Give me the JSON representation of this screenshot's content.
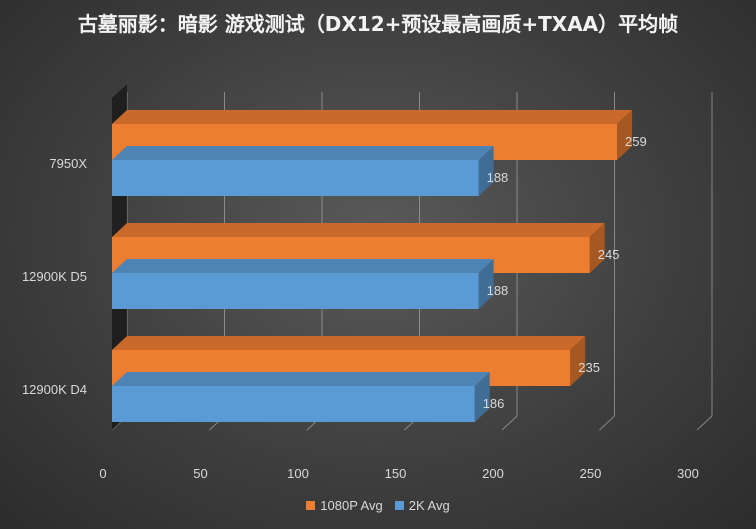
{
  "chart_data": {
    "type": "bar",
    "orientation": "horizontal",
    "style": "3d-clustered",
    "title": "古墓丽影：暗影 游戏测试（DX12+预设最高画质+TXAA）平均帧",
    "categories": [
      "7950X",
      "12900K D5",
      "12900K D4"
    ],
    "series": [
      {
        "name": "1080P Avg",
        "color": "#ed7d31",
        "values": [
          259,
          245,
          235
        ]
      },
      {
        "name": "2K Avg",
        "color": "#5b9bd5",
        "values": [
          188,
          188,
          186
        ]
      }
    ],
    "xlim": [
      0,
      300
    ],
    "xticks": [
      "0",
      "50",
      "100",
      "150",
      "200",
      "250",
      "300"
    ],
    "grid": true,
    "legend": "bottom"
  }
}
